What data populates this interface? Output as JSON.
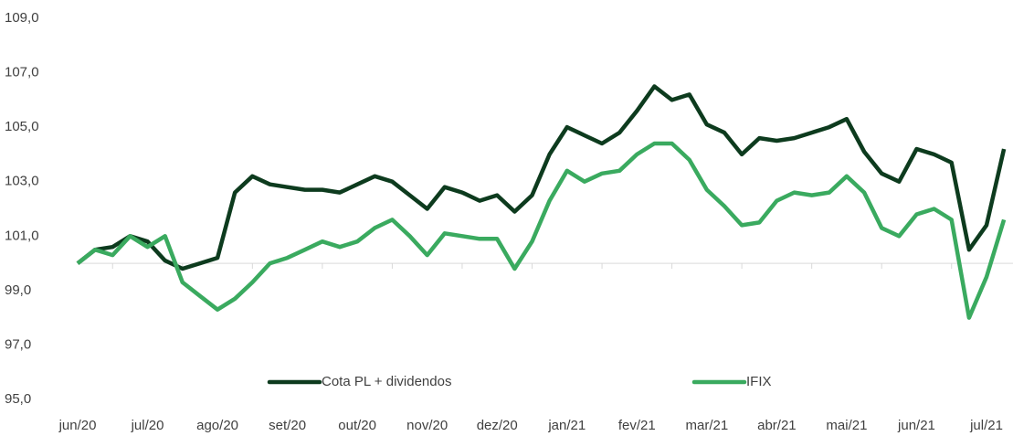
{
  "chart_data": {
    "type": "line",
    "categories": [
      "jun/20",
      null,
      null,
      null,
      "jul/20",
      null,
      null,
      null,
      "ago/20",
      null,
      null,
      null,
      "set/20",
      null,
      null,
      null,
      "out/20",
      null,
      null,
      null,
      "nov/20",
      null,
      null,
      null,
      "dez/20",
      null,
      null,
      null,
      "jan/21",
      null,
      null,
      null,
      "fev/21",
      null,
      null,
      null,
      "mar/21",
      null,
      null,
      null,
      "abr/21",
      null,
      null,
      null,
      "mai/21",
      null,
      null,
      null,
      "jun/21",
      null,
      null,
      null,
      "jul/21",
      null
    ],
    "series": [
      {
        "name": "Cota PL + dividendos",
        "color": "#0d3b1e",
        "values": [
          100.0,
          100.5,
          100.6,
          101.0,
          100.8,
          100.1,
          99.8,
          100.0,
          100.2,
          102.6,
          103.2,
          102.9,
          102.8,
          102.7,
          102.7,
          102.6,
          102.9,
          103.2,
          103.0,
          102.5,
          102.0,
          102.8,
          102.6,
          102.3,
          102.5,
          101.9,
          102.5,
          104.0,
          105.0,
          104.7,
          104.4,
          104.8,
          105.6,
          106.5,
          106.0,
          106.2,
          105.1,
          104.8,
          104.0,
          104.6,
          104.5,
          104.6,
          104.8,
          105.0,
          105.3,
          104.1,
          103.3,
          103.0,
          104.2,
          104.0,
          103.7,
          100.5,
          101.4,
          104.2
        ]
      },
      {
        "name": "IFIX",
        "color": "#3aaa5f",
        "values": [
          100.0,
          100.5,
          100.3,
          101.0,
          100.6,
          101.0,
          99.3,
          98.8,
          98.3,
          98.7,
          99.3,
          100.0,
          100.2,
          100.5,
          100.8,
          100.6,
          100.8,
          101.3,
          101.6,
          101.0,
          100.3,
          101.1,
          101.0,
          100.9,
          100.9,
          99.8,
          100.8,
          102.3,
          103.4,
          103.0,
          103.3,
          103.4,
          104.0,
          104.4,
          104.4,
          103.8,
          102.7,
          102.1,
          101.4,
          101.5,
          102.3,
          102.6,
          102.5,
          102.6,
          103.2,
          102.6,
          101.3,
          101.0,
          101.8,
          102.0,
          101.6,
          98.0,
          99.5,
          101.6
        ]
      }
    ],
    "ylim": [
      95,
      109
    ],
    "yticks": [
      {
        "value": 95,
        "label": "95,0"
      },
      {
        "value": 97,
        "label": "97,0"
      },
      {
        "value": 99,
        "label": "99,0"
      },
      {
        "value": 101,
        "label": "101,0"
      },
      {
        "value": 103,
        "label": "103,0"
      },
      {
        "value": 105,
        "label": "105,0"
      },
      {
        "value": 107,
        "label": "107,0"
      },
      {
        "value": 109,
        "label": "109,0"
      }
    ],
    "legend": "bottom"
  }
}
